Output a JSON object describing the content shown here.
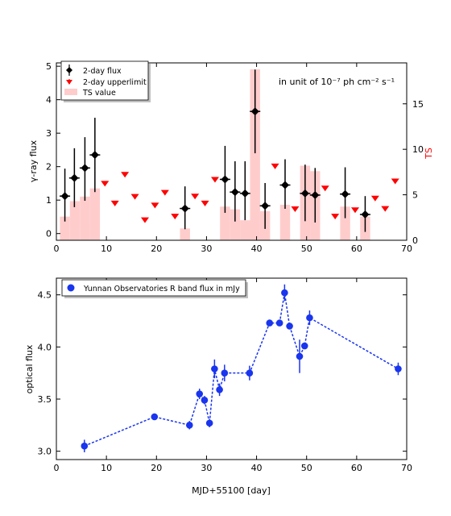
{
  "chart_data": [
    {
      "type": "scatter",
      "panel": "top",
      "xlim": [
        0,
        70
      ],
      "ylim": [
        -0.2,
        5.1
      ],
      "y2lim": [
        0,
        19.5
      ],
      "xticks": [
        0,
        10,
        20,
        30,
        40,
        50,
        60,
        70
      ],
      "yticks": [
        0,
        1,
        2,
        3,
        4,
        5
      ],
      "y2ticks": [
        0,
        5,
        10,
        15
      ],
      "ylabel": "γ-ray flux",
      "y2label": "TS",
      "annotation": "in unit of 10⁻⁷ ph cm⁻² s⁻¹",
      "legend_position": "top-left",
      "grid": false,
      "colors": {
        "flux": "#000000",
        "upperlimit": "#ff0000",
        "ts": "#ffcccc",
        "y2axis": "#ff0000"
      },
      "series": [
        {
          "name": "2-day flux",
          "kind": "errorbar",
          "points": [
            {
              "x": 1.7,
              "y": 1.12,
              "ylo": 0.36,
              "yhi": 1.94
            },
            {
              "x": 3.6,
              "y": 1.66,
              "ylo": 0.79,
              "yhi": 2.55
            },
            {
              "x": 5.7,
              "y": 1.96,
              "ylo": 0.98,
              "yhi": 2.88
            },
            {
              "x": 7.7,
              "y": 2.35,
              "ylo": 1.24,
              "yhi": 3.46
            },
            {
              "x": 25.7,
              "y": 0.75,
              "ylo": 0.13,
              "yhi": 1.41
            },
            {
              "x": 33.7,
              "y": 1.62,
              "ylo": 0.62,
              "yhi": 2.62
            },
            {
              "x": 35.7,
              "y": 1.24,
              "ylo": 0.36,
              "yhi": 2.16
            },
            {
              "x": 37.7,
              "y": 1.2,
              "ylo": 0.4,
              "yhi": 2.16
            },
            {
              "x": 39.7,
              "y": 3.65,
              "ylo": 2.4,
              "yhi": 4.9
            },
            {
              "x": 41.7,
              "y": 0.83,
              "ylo": 0.14,
              "yhi": 1.51
            },
            {
              "x": 45.7,
              "y": 1.45,
              "ylo": 0.74,
              "yhi": 2.22
            },
            {
              "x": 49.7,
              "y": 1.2,
              "ylo": 0.37,
              "yhi": 2.06
            },
            {
              "x": 51.7,
              "y": 1.15,
              "ylo": 0.33,
              "yhi": 1.96
            },
            {
              "x": 57.7,
              "y": 1.18,
              "ylo": 0.46,
              "yhi": 1.98
            },
            {
              "x": 61.7,
              "y": 0.57,
              "ylo": 0.05,
              "yhi": 1.12
            }
          ]
        },
        {
          "name": "2-day upperlimit",
          "kind": "upperlimit",
          "points": [
            {
              "x": 9.7,
              "y": 1.5
            },
            {
              "x": 11.7,
              "y": 0.91
            },
            {
              "x": 13.7,
              "y": 1.77
            },
            {
              "x": 15.7,
              "y": 1.11
            },
            {
              "x": 17.7,
              "y": 0.41
            },
            {
              "x": 19.7,
              "y": 0.85
            },
            {
              "x": 21.7,
              "y": 1.23
            },
            {
              "x": 23.7,
              "y": 0.52
            },
            {
              "x": 27.7,
              "y": 1.12
            },
            {
              "x": 29.7,
              "y": 0.91
            },
            {
              "x": 31.7,
              "y": 1.62
            },
            {
              "x": 43.7,
              "y": 2.02
            },
            {
              "x": 47.7,
              "y": 0.74
            },
            {
              "x": 53.7,
              "y": 1.36
            },
            {
              "x": 55.7,
              "y": 0.52
            },
            {
              "x": 59.7,
              "y": 0.71
            },
            {
              "x": 63.7,
              "y": 1.06
            },
            {
              "x": 65.7,
              "y": 0.75
            },
            {
              "x": 67.7,
              "y": 1.57
            }
          ]
        },
        {
          "name": "TS value",
          "kind": "bar",
          "axis": "y2",
          "bars": [
            {
              "x0": 0.7,
              "x1": 2.7,
              "ts": 2.6
            },
            {
              "x0": 2.7,
              "x1": 4.7,
              "ts": 4.3
            },
            {
              "x0": 4.7,
              "x1": 6.7,
              "ts": 4.8
            },
            {
              "x0": 6.7,
              "x1": 8.7,
              "ts": 5.7
            },
            {
              "x0": 24.7,
              "x1": 26.7,
              "ts": 1.3
            },
            {
              "x0": 32.7,
              "x1": 34.7,
              "ts": 3.7
            },
            {
              "x0": 34.7,
              "x1": 36.7,
              "ts": 3.4
            },
            {
              "x0": 36.7,
              "x1": 38.7,
              "ts": 2.2
            },
            {
              "x0": 38.7,
              "x1": 40.7,
              "ts": 18.8
            },
            {
              "x0": 40.7,
              "x1": 42.7,
              "ts": 3.2
            },
            {
              "x0": 44.7,
              "x1": 46.7,
              "ts": 3.9
            },
            {
              "x0": 48.7,
              "x1": 50.7,
              "ts": 8.2
            },
            {
              "x0": 50.7,
              "x1": 52.7,
              "ts": 7.6
            },
            {
              "x0": 56.7,
              "x1": 58.7,
              "ts": 3.7
            },
            {
              "x0": 60.7,
              "x1": 62.7,
              "ts": 2.6
            }
          ]
        }
      ]
    },
    {
      "type": "line",
      "panel": "bottom",
      "xlim": [
        0,
        70
      ],
      "ylim": [
        2.92,
        4.66
      ],
      "xticks": [
        0,
        10,
        20,
        30,
        40,
        50,
        60,
        70
      ],
      "yticks": [
        3.0,
        3.5,
        4.0,
        4.5
      ],
      "xlabel": "MJD+55100 [day]",
      "ylabel": "optical flux",
      "legend_position": "top-left",
      "grid": false,
      "series": [
        {
          "name": "Yunnan Observatories R band flux in mJy",
          "color": "#1a35ee",
          "points": [
            {
              "x": 5.6,
              "y": 3.05,
              "err": 0.06
            },
            {
              "x": 19.6,
              "y": 3.33,
              "err": 0.02
            },
            {
              "x": 26.6,
              "y": 3.25,
              "err": 0.04
            },
            {
              "x": 28.6,
              "y": 3.55,
              "err": 0.05
            },
            {
              "x": 29.6,
              "y": 3.49,
              "err": 0.04
            },
            {
              "x": 30.6,
              "y": 3.27,
              "err": 0.04
            },
            {
              "x": 31.6,
              "y": 3.79,
              "err": 0.09
            },
            {
              "x": 32.6,
              "y": 3.59,
              "err": 0.06
            },
            {
              "x": 33.6,
              "y": 3.75,
              "err": 0.08
            },
            {
              "x": 38.6,
              "y": 3.75,
              "err": 0.07
            },
            {
              "x": 42.6,
              "y": 4.23,
              "err": 0.02
            },
            {
              "x": 44.6,
              "y": 4.23,
              "err": 0.02
            },
            {
              "x": 45.6,
              "y": 4.52,
              "err": 0.08
            },
            {
              "x": 46.6,
              "y": 4.2,
              "err": 0.03
            },
            {
              "x": 48.6,
              "y": 3.91,
              "err": 0.16
            },
            {
              "x": 49.6,
              "y": 4.01,
              "err": 0.03
            },
            {
              "x": 50.6,
              "y": 4.28,
              "err": 0.07
            },
            {
              "x": 68.3,
              "y": 3.79,
              "err": 0.06
            }
          ]
        }
      ]
    }
  ]
}
